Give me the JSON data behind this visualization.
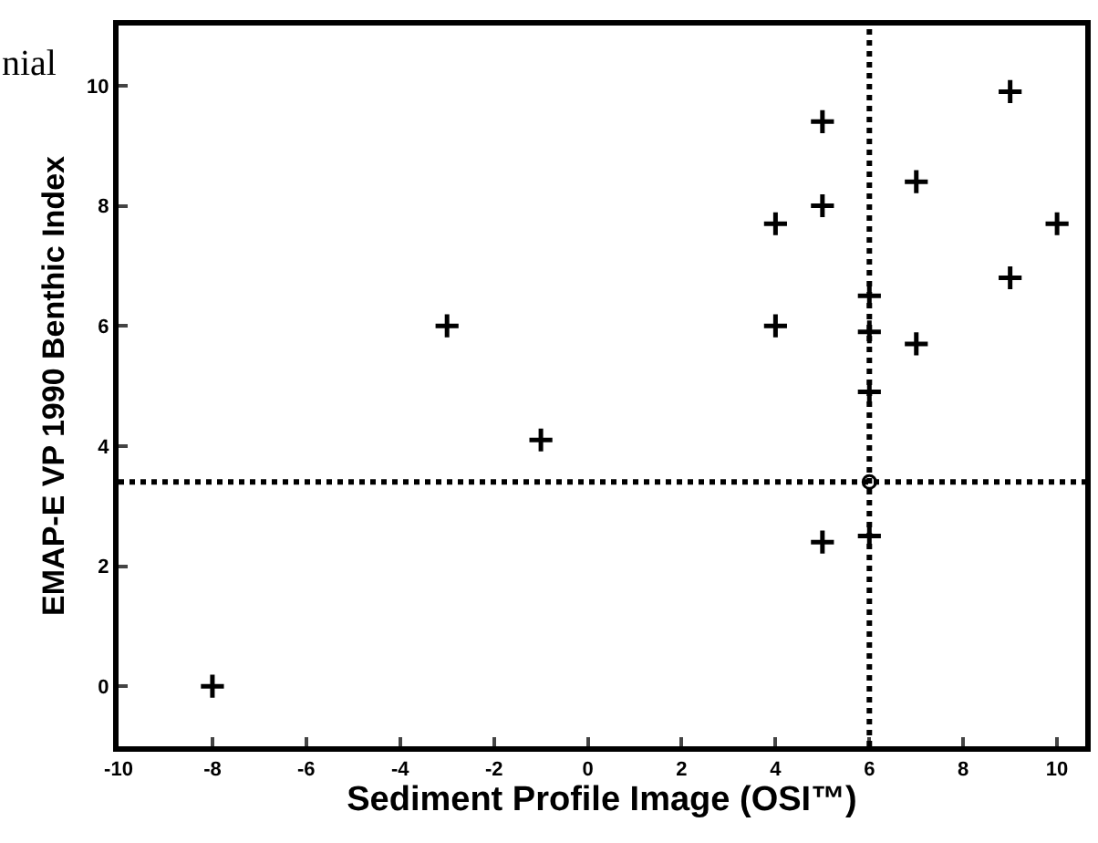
{
  "chart_data": {
    "type": "scatter",
    "xlabel": "Sediment Profile Image (OSI™)",
    "ylabel": "EMAP-E VP 1990 Benthic Index",
    "xlim": [
      -10,
      10.6
    ],
    "xticks": [
      -10,
      -8,
      -6,
      -4,
      -2,
      0,
      2,
      4,
      6,
      8,
      10
    ],
    "ylim": [
      -1,
      11
    ],
    "yticks": [
      0,
      2,
      4,
      6,
      8,
      10
    ],
    "marker": "cross",
    "series": [
      {
        "color": "#000000",
        "x": [
          5,
          9,
          7,
          5,
          4,
          10,
          9,
          6,
          4,
          -3,
          6,
          7,
          6,
          -1,
          5,
          6,
          -8
        ],
        "values": [
          9.4,
          9.9,
          8.4,
          8.0,
          7.7,
          7.7,
          6.8,
          6.5,
          6.0,
          6.0,
          5.9,
          5.7,
          4.9,
          4.1,
          2.4,
          2.5,
          0
        ]
      },
      {
        "color": "#000000",
        "marker": "circle",
        "x": [
          6
        ],
        "values": [
          3.4
        ]
      }
    ],
    "ref_lines": [
      {
        "axis": "x",
        "value": 6,
        "line_style": "dotted",
        "color": "#000000"
      },
      {
        "axis": "y",
        "value": 3.4,
        "line_style": "dotted",
        "color": "#000000"
      }
    ],
    "annotations": [
      "nial"
    ]
  }
}
